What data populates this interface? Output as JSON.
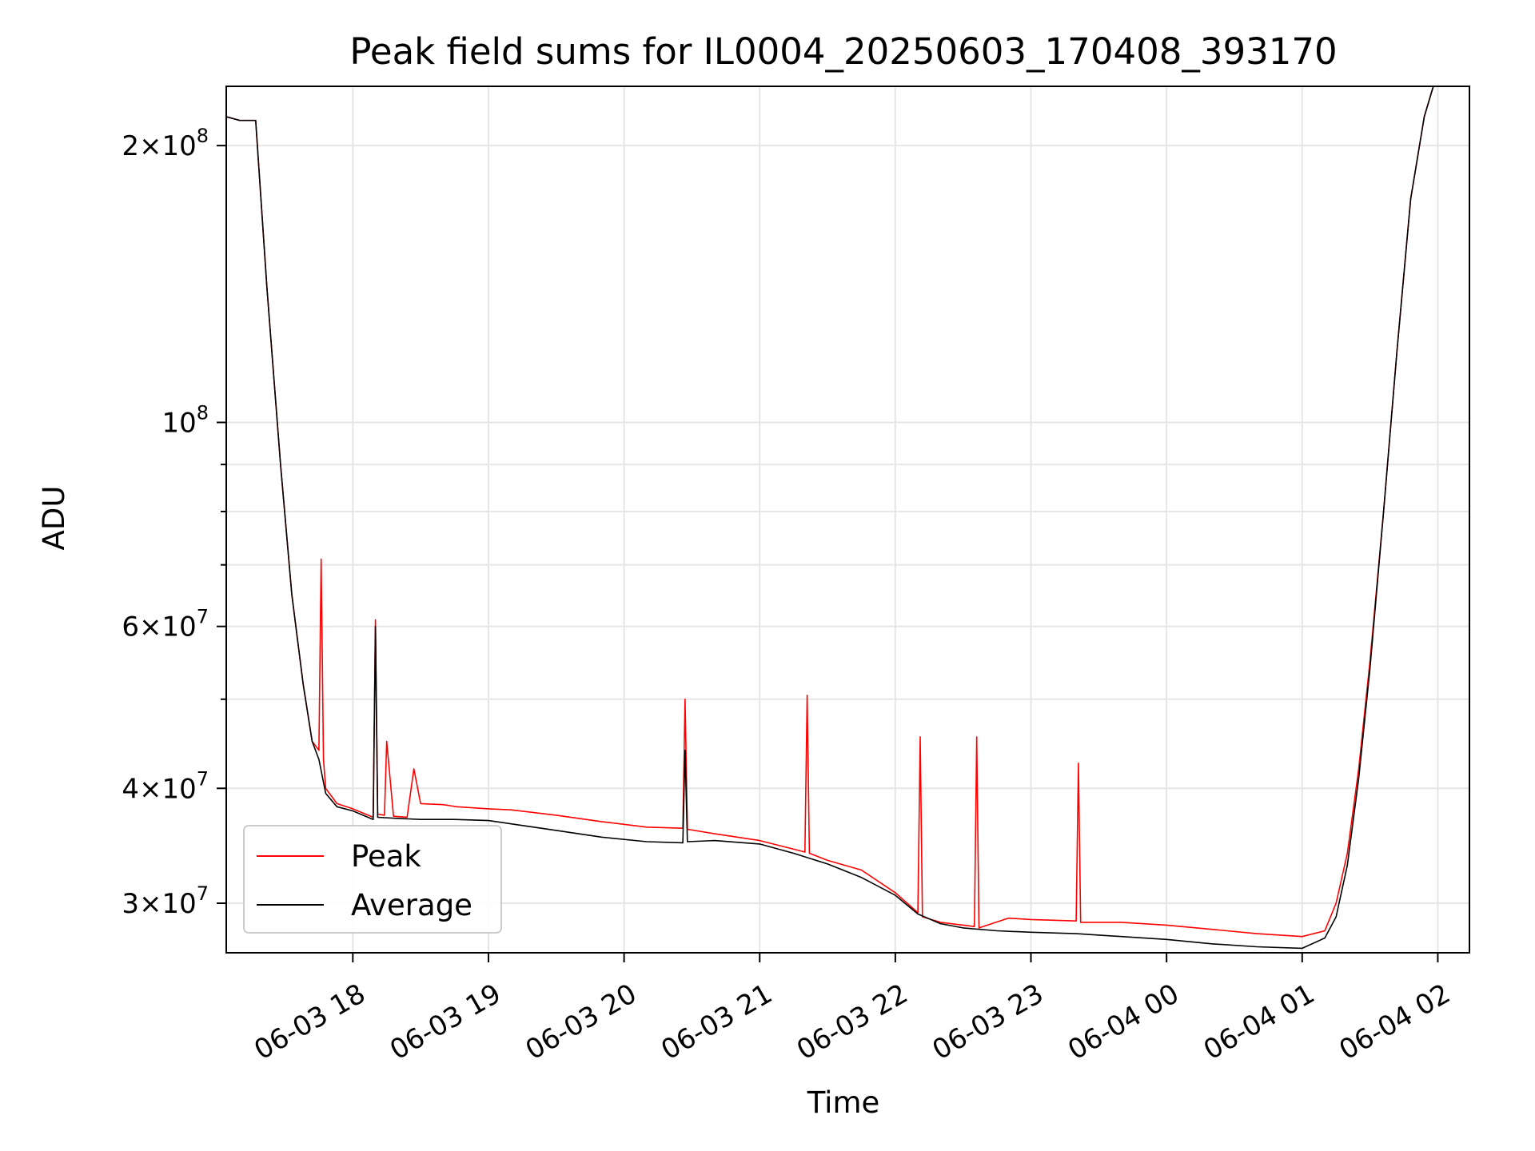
{
  "chart_data": {
    "type": "line",
    "title": "Peak field sums for IL0004_20250603_170408_393170",
    "xlabel": "Time",
    "ylabel": "ADU",
    "yscale": "log",
    "grid": true,
    "legend_position": "lower-left",
    "xlim": [
      "2025-06-03 17:04",
      "2025-06-04 02:14"
    ],
    "ylim": [
      26500000,
      232000000
    ],
    "x_ticks": [
      {
        "t": "2025-06-03 18:00",
        "label": "06-03 18"
      },
      {
        "t": "2025-06-03 19:00",
        "label": "06-03 19"
      },
      {
        "t": "2025-06-03 20:00",
        "label": "06-03 20"
      },
      {
        "t": "2025-06-03 21:00",
        "label": "06-03 21"
      },
      {
        "t": "2025-06-03 22:00",
        "label": "06-03 22"
      },
      {
        "t": "2025-06-03 23:00",
        "label": "06-03 23"
      },
      {
        "t": "2025-06-04 00:00",
        "label": "06-04 00"
      },
      {
        "t": "2025-06-04 01:00",
        "label": "06-04 01"
      },
      {
        "t": "2025-06-04 02:00",
        "label": "06-04 02"
      }
    ],
    "y_ticks": [
      {
        "v": 30000000,
        "mant": "3",
        "exp": "7"
      },
      {
        "v": 40000000,
        "mant": "4",
        "exp": "7"
      },
      {
        "v": 60000000,
        "mant": "6",
        "exp": "7"
      },
      {
        "v": 100000000,
        "mant": "",
        "exp": "8"
      },
      {
        "v": 200000000,
        "mant": "2",
        "exp": "8"
      }
    ],
    "y_minor_ticks": [
      50000000,
      70000000,
      80000000,
      90000000
    ],
    "series": [
      {
        "name": "Peak",
        "color": "#ff0000",
        "x": [
          "2025-06-03 17:04",
          "2025-06-03 17:10",
          "2025-06-03 17:17",
          "2025-06-03 17:22",
          "2025-06-03 17:28",
          "2025-06-03 17:33",
          "2025-06-03 17:38",
          "2025-06-03 17:42",
          "2025-06-03 17:45",
          "2025-06-03 17:46",
          "2025-06-03 17:47",
          "2025-06-03 17:48",
          "2025-06-03 17:53",
          "2025-06-03 18:00",
          "2025-06-03 18:09",
          "2025-06-03 18:10",
          "2025-06-03 18:11",
          "2025-06-03 18:14",
          "2025-06-03 18:15",
          "2025-06-03 18:18",
          "2025-06-03 18:24",
          "2025-06-03 18:27",
          "2025-06-03 18:30",
          "2025-06-03 18:40",
          "2025-06-03 18:43",
          "2025-06-03 18:46",
          "2025-06-03 19:00",
          "2025-06-03 19:10",
          "2025-06-03 19:30",
          "2025-06-03 19:50",
          "2025-06-03 20:10",
          "2025-06-03 20:26",
          "2025-06-03 20:27",
          "2025-06-03 20:28",
          "2025-06-03 20:40",
          "2025-06-03 21:00",
          "2025-06-03 21:14",
          "2025-06-03 21:20",
          "2025-06-03 21:21",
          "2025-06-03 21:22",
          "2025-06-03 21:30",
          "2025-06-03 21:45",
          "2025-06-03 22:00",
          "2025-06-03 22:10",
          "2025-06-03 22:11",
          "2025-06-03 22:12",
          "2025-06-03 22:20",
          "2025-06-03 22:35",
          "2025-06-03 22:36",
          "2025-06-03 22:37",
          "2025-06-03 22:50",
          "2025-06-03 23:00",
          "2025-06-03 23:20",
          "2025-06-03 23:21",
          "2025-06-03 23:22",
          "2025-06-03 23:40",
          "2025-06-04 00:00",
          "2025-06-04 00:20",
          "2025-06-04 00:40",
          "2025-06-04 01:00",
          "2025-06-04 01:10",
          "2025-06-04 01:15",
          "2025-06-04 01:20",
          "2025-06-04 01:25",
          "2025-06-04 01:30",
          "2025-06-04 01:36",
          "2025-06-04 01:42",
          "2025-06-04 01:48",
          "2025-06-04 01:54",
          "2025-06-04 01:58",
          "2025-06-04 02:00",
          "2025-06-04 02:02"
        ],
        "values": [
          215000000,
          213000000,
          213000000,
          140000000,
          90000000,
          65000000,
          52000000,
          45000000,
          44000000,
          71000000,
          43000000,
          40000000,
          38500000,
          38000000,
          37200000,
          61000000,
          37500000,
          37400000,
          45000000,
          37300000,
          37200000,
          42000000,
          38500000,
          38400000,
          38300000,
          38200000,
          38000000,
          37900000,
          37400000,
          36800000,
          36300000,
          36200000,
          50000000,
          36100000,
          35700000,
          35100000,
          34400000,
          34100000,
          50500000,
          34000000,
          33400000,
          32600000,
          30800000,
          29300000,
          45500000,
          29000000,
          28600000,
          28300000,
          45500000,
          28200000,
          28900000,
          28800000,
          28700000,
          42600000,
          28600000,
          28600000,
          28400000,
          28100000,
          27800000,
          27600000,
          28000000,
          30000000,
          34000000,
          42000000,
          55000000,
          80000000,
          120000000,
          175000000,
          215000000,
          232000000,
          232000000,
          232000000
        ]
      },
      {
        "name": "Average",
        "color": "#000000",
        "x": [
          "2025-06-03 17:04",
          "2025-06-03 17:10",
          "2025-06-03 17:17",
          "2025-06-03 17:22",
          "2025-06-03 17:28",
          "2025-06-03 17:33",
          "2025-06-03 17:38",
          "2025-06-03 17:42",
          "2025-06-03 17:45",
          "2025-06-03 17:48",
          "2025-06-03 17:53",
          "2025-06-03 18:00",
          "2025-06-03 18:09",
          "2025-06-03 18:10",
          "2025-06-03 18:11",
          "2025-06-03 18:20",
          "2025-06-03 18:30",
          "2025-06-03 18:45",
          "2025-06-03 19:00",
          "2025-06-03 19:10",
          "2025-06-03 19:30",
          "2025-06-03 19:50",
          "2025-06-03 20:10",
          "2025-06-03 20:26",
          "2025-06-03 20:27",
          "2025-06-03 20:28",
          "2025-06-03 20:40",
          "2025-06-03 21:00",
          "2025-06-03 21:15",
          "2025-06-03 21:30",
          "2025-06-03 21:45",
          "2025-06-03 22:00",
          "2025-06-03 22:10",
          "2025-06-03 22:20",
          "2025-06-03 22:30",
          "2025-06-03 22:45",
          "2025-06-03 23:00",
          "2025-06-03 23:20",
          "2025-06-03 23:40",
          "2025-06-04 00:00",
          "2025-06-04 00:20",
          "2025-06-04 00:40",
          "2025-06-04 01:00",
          "2025-06-04 01:10",
          "2025-06-04 01:15",
          "2025-06-04 01:20",
          "2025-06-04 01:25",
          "2025-06-04 01:30",
          "2025-06-04 01:36",
          "2025-06-04 01:42",
          "2025-06-04 01:48",
          "2025-06-04 01:54",
          "2025-06-04 01:58",
          "2025-06-04 02:00",
          "2025-06-04 02:02"
        ],
        "values": [
          215000000,
          213000000,
          213000000,
          140000000,
          90000000,
          65000000,
          52000000,
          45000000,
          43000000,
          39500000,
          38200000,
          37800000,
          37000000,
          60000000,
          37200000,
          37100000,
          37000000,
          37000000,
          36900000,
          36600000,
          36000000,
          35400000,
          35000000,
          34900000,
          44000000,
          35000000,
          35100000,
          34800000,
          34000000,
          33100000,
          32000000,
          30600000,
          29200000,
          28500000,
          28200000,
          28000000,
          27900000,
          27800000,
          27600000,
          27400000,
          27100000,
          26900000,
          26800000,
          27500000,
          29000000,
          33000000,
          41000000,
          54000000,
          80000000,
          120000000,
          175000000,
          215000000,
          232000000,
          232000000,
          232000000
        ]
      }
    ]
  }
}
